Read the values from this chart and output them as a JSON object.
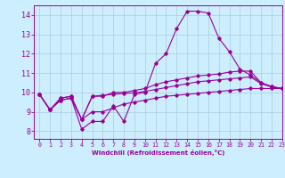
{
  "title": "",
  "xlabel": "Windchill (Refroidissement éolien,°C)",
  "bg_color": "#cceeff",
  "line_color": "#990099",
  "grid_color": "#aaccdd",
  "xlim": [
    -0.5,
    23
  ],
  "ylim": [
    7.6,
    14.5
  ],
  "yticks": [
    8,
    9,
    10,
    11,
    12,
    13,
    14
  ],
  "xticks": [
    0,
    1,
    2,
    3,
    4,
    5,
    6,
    7,
    8,
    9,
    10,
    11,
    12,
    13,
    14,
    15,
    16,
    17,
    18,
    19,
    20,
    21,
    22,
    23
  ],
  "series1_x": [
    0,
    1,
    2,
    3,
    4,
    5,
    6,
    7,
    8,
    9,
    10,
    11,
    12,
    13,
    14,
    15,
    16,
    17,
    18,
    19,
    20,
    21,
    22,
    23
  ],
  "series1_y": [
    9.9,
    9.1,
    9.6,
    9.7,
    8.1,
    8.5,
    8.5,
    9.3,
    8.5,
    9.9,
    10.0,
    11.5,
    12.0,
    13.3,
    14.2,
    14.2,
    14.1,
    12.8,
    12.1,
    11.2,
    10.9,
    10.5,
    10.3,
    10.2
  ],
  "series2_x": [
    0,
    1,
    2,
    3,
    4,
    5,
    6,
    7,
    8,
    9,
    10,
    11,
    12,
    13,
    14,
    15,
    16,
    17,
    18,
    19,
    20,
    21,
    22,
    23
  ],
  "series2_y": [
    9.9,
    9.1,
    9.7,
    9.8,
    8.6,
    9.8,
    9.8,
    10.0,
    10.0,
    10.1,
    10.2,
    10.4,
    10.55,
    10.65,
    10.75,
    10.85,
    10.9,
    10.95,
    11.05,
    11.1,
    11.1,
    10.5,
    10.3,
    10.2
  ],
  "series3_x": [
    0,
    1,
    2,
    3,
    4,
    5,
    6,
    7,
    8,
    9,
    10,
    11,
    12,
    13,
    14,
    15,
    16,
    17,
    18,
    19,
    20,
    21,
    22,
    23
  ],
  "series3_y": [
    9.9,
    9.1,
    9.7,
    9.8,
    8.6,
    9.8,
    9.85,
    9.9,
    9.95,
    9.98,
    10.05,
    10.15,
    10.25,
    10.35,
    10.45,
    10.55,
    10.6,
    10.65,
    10.7,
    10.75,
    10.8,
    10.45,
    10.28,
    10.2
  ],
  "series4_x": [
    0,
    1,
    2,
    3,
    4,
    5,
    6,
    7,
    8,
    9,
    10,
    11,
    12,
    13,
    14,
    15,
    16,
    17,
    18,
    19,
    20,
    21,
    22,
    23
  ],
  "series4_y": [
    9.9,
    9.1,
    9.6,
    9.7,
    8.6,
    9.0,
    9.0,
    9.2,
    9.4,
    9.5,
    9.6,
    9.7,
    9.8,
    9.85,
    9.9,
    9.95,
    10.0,
    10.05,
    10.1,
    10.15,
    10.2,
    10.2,
    10.2,
    10.2
  ]
}
